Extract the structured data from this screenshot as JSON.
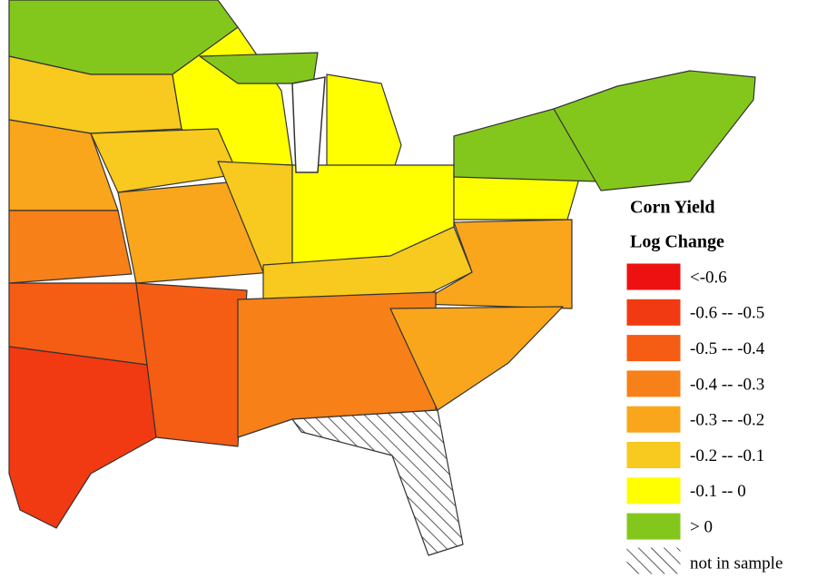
{
  "legend": {
    "title": "Corn Yield",
    "subtitle": "Log Change",
    "items": [
      {
        "label": "<-0.6",
        "color": "#ee1111"
      },
      {
        "label": "-0.6 -- -0.5",
        "color": "#f23a12"
      },
      {
        "label": "-0.5 -- -0.4",
        "color": "#f55c14"
      },
      {
        "label": "-0.4 -- -0.3",
        "color": "#f78018"
      },
      {
        "label": "-0.3 -- -0.2",
        "color": "#f9a61c"
      },
      {
        "label": "-0.2 -- -0.1",
        "color": "#f8c91e"
      },
      {
        "label": "-0.1 --  0",
        "color": "#ffff00"
      },
      {
        "label": "> 0",
        "color": "#84c71c"
      }
    ],
    "no_data": "not in sample"
  }
}
